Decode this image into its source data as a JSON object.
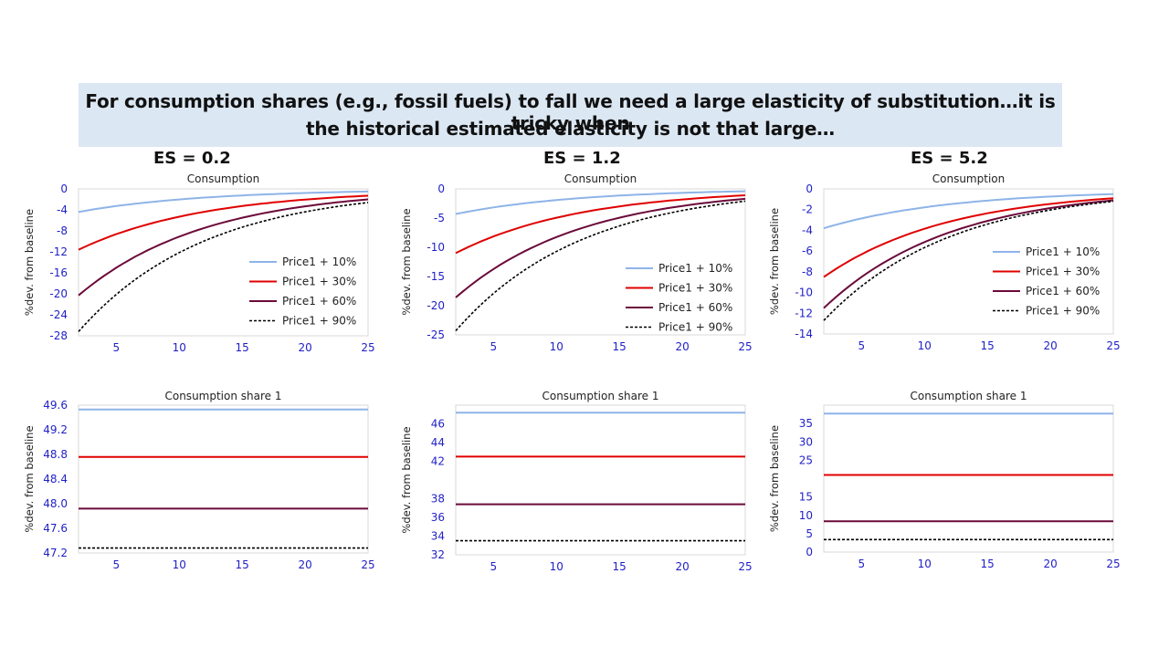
{
  "banner": {
    "line1": "For consumption shares (e.g.,  fossil fuels) to fall we need a large elasticity of substitution…it is tricky when",
    "line2": "the historical estimated elasticity is not that large…"
  },
  "columns": [
    {
      "label": "ES = 0.2"
    },
    {
      "label": "ES = 1.2"
    },
    {
      "label": "ES = 5.2"
    }
  ],
  "series_styles": [
    {
      "name": "Price1 + 10%",
      "color": "#8eb4e8",
      "dash": ""
    },
    {
      "name": "Price1 + 30%",
      "color": "#e00000",
      "dash": ""
    },
    {
      "name": "Price1 + 60%",
      "color": "#6b0a3a",
      "dash": ""
    },
    {
      "name": "Price1 + 90%",
      "color": "#000000",
      "dash": "3,2"
    }
  ],
  "chart_data": [
    {
      "type": "line",
      "title": "Consumption",
      "ylabel": "%dev. from baseline",
      "x_range": [
        2,
        25
      ],
      "xticks": [
        5,
        10,
        15,
        20,
        25
      ],
      "ylim": [
        -28,
        0
      ],
      "yticks": [
        0,
        -4,
        -8,
        -12,
        -16,
        -20,
        -24,
        -28
      ],
      "legend": "right",
      "series": [
        {
          "name": "Price1 + 10%",
          "y_at_x2": -4.4,
          "y_at_x25": -0.5
        },
        {
          "name": "Price1 + 30%",
          "y_at_x2": -11.6,
          "y_at_x25": -1.3
        },
        {
          "name": "Price1 + 60%",
          "y_at_x2": -20.3,
          "y_at_x25": -2.0
        },
        {
          "name": "Price1 + 90%",
          "y_at_x2": -27.2,
          "y_at_x25": -2.6
        }
      ]
    },
    {
      "type": "line",
      "title": "Consumption",
      "ylabel": "%dev. from baseline",
      "x_range": [
        2,
        25
      ],
      "xticks": [
        5,
        10,
        15,
        20,
        25
      ],
      "ylim": [
        -25,
        0
      ],
      "yticks": [
        0,
        -5,
        -10,
        -15,
        -20,
        -25
      ],
      "legend": "right",
      "series": [
        {
          "name": "Price1 + 10%",
          "y_at_x2": -4.3,
          "y_at_x25": -0.4
        },
        {
          "name": "Price1 + 30%",
          "y_at_x2": -11.0,
          "y_at_x25": -1.1
        },
        {
          "name": "Price1 + 60%",
          "y_at_x2": -18.6,
          "y_at_x25": -1.7
        },
        {
          "name": "Price1 + 90%",
          "y_at_x2": -24.3,
          "y_at_x25": -2.1
        }
      ]
    },
    {
      "type": "line",
      "title": "Consumption",
      "ylabel": "%dev. from baseline",
      "x_range": [
        2,
        25
      ],
      "xticks": [
        5,
        10,
        15,
        20,
        25
      ],
      "ylim": [
        -14,
        0
      ],
      "yticks": [
        0,
        -2,
        -4,
        -6,
        -8,
        -10,
        -12,
        -14
      ],
      "legend": "right",
      "series": [
        {
          "name": "Price1 + 10%",
          "y_at_x2": -3.8,
          "y_at_x25": -0.5
        },
        {
          "name": "Price1 + 30%",
          "y_at_x2": -8.5,
          "y_at_x25": -0.9
        },
        {
          "name": "Price1 + 60%",
          "y_at_x2": -11.5,
          "y_at_x25": -1.1
        },
        {
          "name": "Price1 + 90%",
          "y_at_x2": -12.7,
          "y_at_x25": -1.2
        }
      ]
    },
    {
      "type": "line",
      "title": "Consumption share 1",
      "ylabel": "%dev. from baseline",
      "x_range": [
        2,
        25
      ],
      "xticks": [
        5,
        10,
        15,
        20,
        25
      ],
      "ylim": [
        47.2,
        49.6
      ],
      "yticks": [
        49.6,
        49.2,
        48.8,
        48.4,
        48.0,
        47.6,
        47.2
      ],
      "ytick_labels": [
        "49.6",
        "49.2",
        "48.8",
        "48.4",
        "48.0",
        "47.6",
        "47.2"
      ],
      "series": [
        {
          "name": "Price1 + 10%",
          "y": 49.53
        },
        {
          "name": "Price1 + 30%",
          "y": 48.76
        },
        {
          "name": "Price1 + 60%",
          "y": 47.92
        },
        {
          "name": "Price1 + 90%",
          "y": 47.28
        }
      ]
    },
    {
      "type": "line",
      "title": "Consumption share 1",
      "ylabel": "%dev. from baseline",
      "x_range": [
        2,
        25
      ],
      "xticks": [
        5,
        10,
        15,
        20,
        25
      ],
      "ylim": [
        32,
        48
      ],
      "yticks": [
        46,
        44,
        42,
        38,
        36,
        34,
        32
      ],
      "ytick_labels": [
        "46",
        "44",
        "42",
        "38",
        "36",
        "34",
        "32"
      ],
      "series": [
        {
          "name": "Price1 + 10%",
          "y": 47.2
        },
        {
          "name": "Price1 + 30%",
          "y": 42.5
        },
        {
          "name": "Price1 + 60%",
          "y": 37.4
        },
        {
          "name": "Price1 + 90%",
          "y": 33.5
        }
      ]
    },
    {
      "type": "line",
      "title": "Consumption share 1",
      "ylabel": "%dev. from baseline",
      "x_range": [
        2,
        25
      ],
      "xticks": [
        5,
        10,
        15,
        20,
        25
      ],
      "ylim": [
        0,
        40
      ],
      "yticks": [
        35,
        30,
        25,
        15,
        10,
        5,
        0
      ],
      "ytick_labels": [
        "35",
        "30",
        "25",
        "15",
        "10",
        "5",
        "0"
      ],
      "series": [
        {
          "name": "Price1 + 10%",
          "y": 37.7
        },
        {
          "name": "Price1 + 30%",
          "y": 21.0
        },
        {
          "name": "Price1 + 60%",
          "y": 8.4
        },
        {
          "name": "Price1 + 90%",
          "y": 3.4
        }
      ]
    }
  ]
}
